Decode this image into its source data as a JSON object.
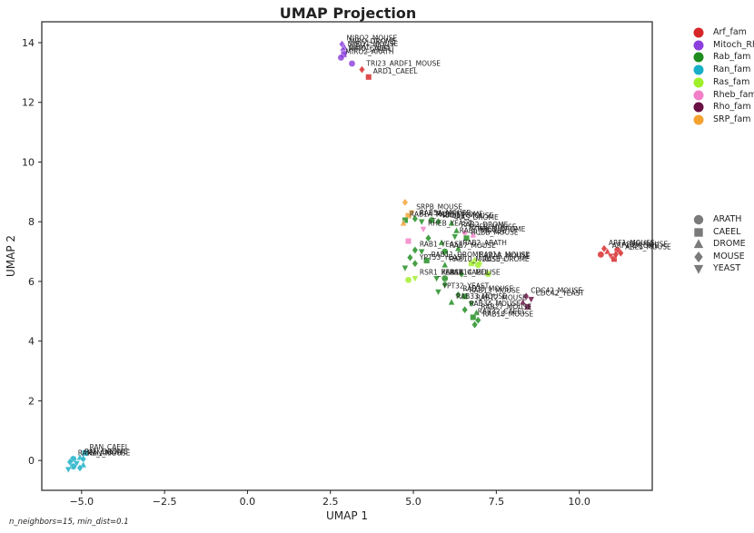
{
  "chart_data": {
    "type": "scatter",
    "title": "UMAP Projection",
    "xlabel": "UMAP 1",
    "ylabel": "UMAP 2",
    "xlim": [
      -6.2,
      12.2
    ],
    "ylim": [
      -1.0,
      14.7
    ],
    "xticks": [
      -5,
      -2.5,
      0,
      2.5,
      5,
      7.5,
      10
    ],
    "xtick_labels": [
      "−5.0",
      "−2.5",
      "0.0",
      "2.5",
      "5.0",
      "7.5",
      "10.0"
    ],
    "yticks": [
      0,
      2,
      4,
      6,
      8,
      10,
      12,
      14
    ],
    "ytick_labels": [
      "0",
      "2",
      "4",
      "6",
      "8",
      "10",
      "12",
      "14"
    ],
    "grid": false,
    "families": [
      {
        "name": "Arf_fam",
        "color": "#d62728"
      },
      {
        "name": "Mitoch_Rho",
        "color": "#8c3fdc"
      },
      {
        "name": "Rab_fam",
        "color": "#1e8c1e"
      },
      {
        "name": "Ran_fam",
        "color": "#17aec8"
      },
      {
        "name": "Ras_fam",
        "color": "#9fef2a"
      },
      {
        "name": "Rheb_fam",
        "color": "#f27fc8"
      },
      {
        "name": "Rho_fam",
        "color": "#6b1043"
      },
      {
        "name": "SRP_fam",
        "color": "#f5a231"
      }
    ],
    "species": [
      {
        "name": "ARATH",
        "marker": "circle"
      },
      {
        "name": "CAEEL",
        "marker": "square"
      },
      {
        "name": "DROME",
        "marker": "triangle-up"
      },
      {
        "name": "MOUSE",
        "marker": "diamond"
      },
      {
        "name": "YEAST",
        "marker": "triangle-down"
      }
    ],
    "points": [
      {
        "x": 2.85,
        "y": 13.95,
        "family": "Mitoch_Rho",
        "species": "MOUSE",
        "label": "MIRO2_MOUSE"
      },
      {
        "x": 2.92,
        "y": 13.85,
        "family": "Mitoch_Rho",
        "species": "DROME",
        "label": "MIRO_DROME"
      },
      {
        "x": 2.88,
        "y": 13.75,
        "family": "Mitoch_Rho",
        "species": "MOUSE",
        "label": "MIRO1_MOUSE"
      },
      {
        "x": 2.95,
        "y": 13.65,
        "family": "Mitoch_Rho",
        "species": "YEAST",
        "label": "GEM1_YEAST"
      },
      {
        "x": 2.9,
        "y": 13.6,
        "family": "Mitoch_Rho",
        "species": "CAEEL",
        "label": "MIRO_CAEEL"
      },
      {
        "x": 2.82,
        "y": 13.5,
        "family": "Mitoch_Rho",
        "species": "ARATH",
        "label": "MIRO2_ARATH"
      },
      {
        "x": 3.15,
        "y": 13.3,
        "family": "Mitoch_Rho",
        "species": "ARATH",
        "label": ""
      },
      {
        "x": 3.45,
        "y": 13.1,
        "family": "Arf_fam",
        "species": "MOUSE",
        "label": "TRI23_ARDF1_MOUSE"
      },
      {
        "x": 3.65,
        "y": 12.85,
        "family": "Arf_fam",
        "species": "CAEEL",
        "label": "ARD1_CAEEL"
      },
      {
        "x": 4.75,
        "y": 8.65,
        "family": "SRP_fam",
        "species": "MOUSE",
        "label": ""
      },
      {
        "x": 4.95,
        "y": 8.3,
        "family": "SRP_fam",
        "species": "YEAST",
        "label": "SRPB_MOUSE"
      },
      {
        "x": 4.85,
        "y": 8.2,
        "family": "SRP_fam",
        "species": "CAEEL",
        "label": ""
      },
      {
        "x": 4.75,
        "y": 8.05,
        "family": "Rab_fam",
        "species": "CAEEL",
        "label": "RAB1A_MOUSE"
      },
      {
        "x": 4.7,
        "y": 7.95,
        "family": "SRP_fam",
        "species": "DROME",
        "label": ""
      },
      {
        "x": 5.05,
        "y": 8.1,
        "family": "Rab_fam",
        "species": "MOUSE",
        "label": "RAB5A_MOUSE"
      },
      {
        "x": 5.25,
        "y": 8.0,
        "family": "Rab_fam",
        "species": "YEAST",
        "label": ""
      },
      {
        "x": 5.55,
        "y": 8.05,
        "family": "Rab_fam",
        "species": "ARATH",
        "label": "RAB8_DROME"
      },
      {
        "x": 5.75,
        "y": 8.0,
        "family": "Rab_fam",
        "species": "MOUSE",
        "label": "RAB11_MOUSE"
      },
      {
        "x": 6.15,
        "y": 7.95,
        "family": "Rab_fam",
        "species": "DROME",
        "label": "RAS_DROME"
      },
      {
        "x": 5.3,
        "y": 7.75,
        "family": "Rheb_fam",
        "species": "YEAST",
        "label": "RHEB_YEAST"
      },
      {
        "x": 4.85,
        "y": 7.35,
        "family": "Rheb_fam",
        "species": "CAEEL",
        "label": ""
      },
      {
        "x": 6.3,
        "y": 7.7,
        "family": "Rab_fam",
        "species": "DROME",
        "label": "RAB2_DROME"
      },
      {
        "x": 6.55,
        "y": 7.62,
        "family": "Rheb_fam",
        "species": "MOUSE",
        "label": "RHEB_MOUSE"
      },
      {
        "x": 6.8,
        "y": 7.55,
        "family": "Rheb_fam",
        "species": "DROME",
        "label": "RHEB_DROME"
      },
      {
        "x": 6.6,
        "y": 7.45,
        "family": "Rab_fam",
        "species": "CAEEL",
        "label": "RUBB_MOUSE"
      },
      {
        "x": 6.25,
        "y": 7.5,
        "family": "Rab_fam",
        "species": "YEAST",
        "label": "RAB6_MOUSE"
      },
      {
        "x": 5.45,
        "y": 7.45,
        "family": "Rab_fam",
        "species": "MOUSE",
        "label": ""
      },
      {
        "x": 5.85,
        "y": 7.3,
        "family": "Rab_fam",
        "species": "DROME",
        "label": ""
      },
      {
        "x": 5.05,
        "y": 7.05,
        "family": "Rab_fam",
        "species": "MOUSE",
        "label": "RAB1_YEAST"
      },
      {
        "x": 5.25,
        "y": 7.0,
        "family": "Rab_fam",
        "species": "YEAST",
        "label": ""
      },
      {
        "x": 5.95,
        "y": 7.0,
        "family": "Rab_fam",
        "species": "ARATH",
        "label": "RAB7_MOUSE"
      },
      {
        "x": 6.35,
        "y": 7.1,
        "family": "Rab_fam",
        "species": "DROME",
        "label": "RAB2_ARATH"
      },
      {
        "x": 4.9,
        "y": 6.8,
        "family": "Rab_fam",
        "species": "MOUSE",
        "label": ""
      },
      {
        "x": 5.05,
        "y": 6.6,
        "family": "Rab_fam",
        "species": "MOUSE",
        "label": "YPT53_YEAST"
      },
      {
        "x": 5.4,
        "y": 6.7,
        "family": "Rab_fam",
        "species": "CAEEL",
        "label": "RAB11_DROME"
      },
      {
        "x": 5.95,
        "y": 6.55,
        "family": "Rab_fam",
        "species": "DROME",
        "label": "RAB10_MOUSE"
      },
      {
        "x": 6.85,
        "y": 6.7,
        "family": "Ras_fam",
        "species": "MOUSE",
        "label": "RAP1A_MOUSE"
      },
      {
        "x": 7.0,
        "y": 6.65,
        "family": "Ras_fam",
        "species": "DROME",
        "label": "KRAS_MOUSE"
      },
      {
        "x": 6.95,
        "y": 6.55,
        "family": "Ras_fam",
        "species": "ARATH",
        "label": "RAS3_DROME"
      },
      {
        "x": 6.75,
        "y": 6.6,
        "family": "Ras_fam",
        "species": "CAEEL",
        "label": ""
      },
      {
        "x": 4.75,
        "y": 6.45,
        "family": "Rab_fam",
        "species": "YEAST",
        "label": ""
      },
      {
        "x": 5.05,
        "y": 6.1,
        "family": "Ras_fam",
        "species": "YEAST",
        "label": "RSR1_YEAST"
      },
      {
        "x": 4.85,
        "y": 6.05,
        "family": "Ras_fam",
        "species": "ARATH",
        "label": ""
      },
      {
        "x": 5.7,
        "y": 6.1,
        "family": "Rab_fam",
        "species": "YEAST",
        "label": "RAB18_CAEEL"
      },
      {
        "x": 5.95,
        "y": 6.1,
        "family": "Rab_fam",
        "species": "ARATH",
        "label": "RAB14_MOUSE"
      },
      {
        "x": 6.45,
        "y": 6.25,
        "family": "Rab_fam",
        "species": "MOUSE",
        "label": ""
      },
      {
        "x": 7.25,
        "y": 6.25,
        "family": "Ras_fam",
        "species": "ARATH",
        "label": ""
      },
      {
        "x": 5.75,
        "y": 5.65,
        "family": "Rab_fam",
        "species": "YEAST",
        "label": "YPT32_YEAST"
      },
      {
        "x": 6.35,
        "y": 5.55,
        "family": "Rab_fam",
        "species": "MOUSE",
        "label": "RAB35_MOUSE"
      },
      {
        "x": 6.55,
        "y": 5.5,
        "family": "Rab_fam",
        "species": "CAEEL",
        "label": "RAB13_MOUSE"
      },
      {
        "x": 6.15,
        "y": 5.3,
        "family": "Rab_fam",
        "species": "DROME",
        "label": "RAB33_MOUSE"
      },
      {
        "x": 6.75,
        "y": 5.25,
        "family": "Rab_fam",
        "species": "YEAST",
        "label": "RAB12_MOUSE"
      },
      {
        "x": 6.55,
        "y": 5.05,
        "family": "Rab_fam",
        "species": "MOUSE",
        "label": "RAB3A_MOUSE"
      },
      {
        "x": 6.9,
        "y": 4.95,
        "family": "Rab_fam",
        "species": "DROME",
        "label": "RAB27_MOUSE"
      },
      {
        "x": 6.8,
        "y": 4.8,
        "family": "Rab_fam",
        "species": "CAEEL",
        "label": "RAB32_CAEEL"
      },
      {
        "x": 6.95,
        "y": 4.7,
        "family": "Rab_fam",
        "species": "MOUSE",
        "label": "RAB18_MOUSE"
      },
      {
        "x": 6.85,
        "y": 4.55,
        "family": "Rab_fam",
        "species": "MOUSE",
        "label": ""
      },
      {
        "x": 5.95,
        "y": 5.9,
        "family": "Rab_fam",
        "species": "MOUSE",
        "label": ""
      },
      {
        "x": 8.4,
        "y": 5.5,
        "family": "Rho_fam",
        "species": "MOUSE",
        "label": "CDC42_MOUSE"
      },
      {
        "x": 8.55,
        "y": 5.4,
        "family": "Rho_fam",
        "species": "YEAST",
        "label": "CDC42_YEAST"
      },
      {
        "x": 8.3,
        "y": 5.3,
        "family": "Rho_fam",
        "species": "DROME",
        "label": ""
      },
      {
        "x": 8.45,
        "y": 5.15,
        "family": "Rho_fam",
        "species": "CAEEL",
        "label": ""
      },
      {
        "x": 10.75,
        "y": 7.1,
        "family": "Arf_fam",
        "species": "MOUSE",
        "label": "ARF1_MOUSE"
      },
      {
        "x": 10.85,
        "y": 7.0,
        "family": "Arf_fam",
        "species": "DROME",
        "label": "ARF1_DROME"
      },
      {
        "x": 11.15,
        "y": 7.05,
        "family": "Arf_fam",
        "species": "ARATH",
        "label": "ARF6_MOUSE"
      },
      {
        "x": 11.25,
        "y": 6.95,
        "family": "Arf_fam",
        "species": "MOUSE",
        "label": "ARL1_MOUSE"
      },
      {
        "x": 10.95,
        "y": 6.85,
        "family": "Arf_fam",
        "species": "YEAST",
        "label": ""
      },
      {
        "x": 11.05,
        "y": 6.75,
        "family": "Arf_fam",
        "species": "CAEEL",
        "label": ""
      },
      {
        "x": 10.65,
        "y": 6.9,
        "family": "Arf_fam",
        "species": "ARATH",
        "label": ""
      },
      {
        "x": 11.1,
        "y": 6.9,
        "family": "Arf_fam",
        "species": "MOUSE",
        "label": ""
      },
      {
        "x": -4.9,
        "y": 0.25,
        "family": "Ran_fam",
        "species": "CAEEL",
        "label": "RAN_CAEEL"
      },
      {
        "x": -5.05,
        "y": 0.1,
        "family": "Ran_fam",
        "species": "DROME",
        "label": "RAN_DROME"
      },
      {
        "x": -5.25,
        "y": 0.05,
        "family": "Ran_fam",
        "species": "ARATH",
        "label": "RAN1_ARATH"
      },
      {
        "x": -4.95,
        "y": 0.05,
        "family": "Ran_fam",
        "species": "MOUSE",
        "label": "RAN_MOUSE"
      },
      {
        "x": -5.35,
        "y": -0.05,
        "family": "Ran_fam",
        "species": "MOUSE",
        "label": ""
      },
      {
        "x": -5.15,
        "y": -0.1,
        "family": "Ran_fam",
        "species": "YEAST",
        "label": ""
      },
      {
        "x": -5.25,
        "y": -0.2,
        "family": "Ran_fam",
        "species": "ARATH",
        "label": ""
      },
      {
        "x": -4.95,
        "y": -0.15,
        "family": "Ran_fam",
        "species": "DROME",
        "label": ""
      },
      {
        "x": -5.05,
        "y": -0.25,
        "family": "Ran_fam",
        "species": "MOUSE",
        "label": ""
      },
      {
        "x": -5.4,
        "y": -0.3,
        "family": "Ran_fam",
        "species": "YEAST",
        "label": ""
      }
    ]
  },
  "footnote": "n_neighbors=15, min_dist=0.1"
}
